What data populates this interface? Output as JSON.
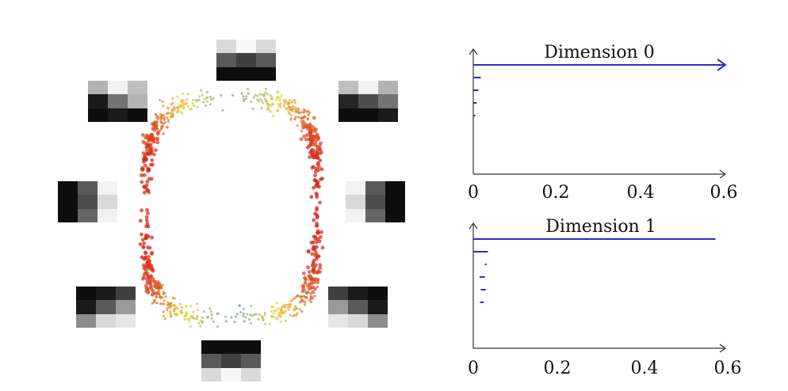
{
  "colors": {
    "bar": "#2b2bcc",
    "axis": "#333333",
    "ring_low": "#2a7bd8",
    "ring_mid": "#e8d840",
    "ring_high": "#d62a1e"
  },
  "patches": [
    {
      "id": "top",
      "pixels": [
        [
          0.85,
          0.97,
          0.85
        ],
        [
          0.35,
          0.25,
          0.35
        ],
        [
          0.05,
          0.05,
          0.05
        ]
      ]
    },
    {
      "id": "upper-right",
      "pixels": [
        [
          0.75,
          0.95,
          0.7
        ],
        [
          0.15,
          0.3,
          0.45
        ],
        [
          0.05,
          0.05,
          0.1
        ]
      ]
    },
    {
      "id": "right",
      "pixels": [
        [
          0.95,
          0.35,
          0.05
        ],
        [
          0.85,
          0.3,
          0.05
        ],
        [
          0.95,
          0.4,
          0.05
        ]
      ]
    },
    {
      "id": "lower-right",
      "pixels": [
        [
          0.25,
          0.1,
          0.05
        ],
        [
          0.6,
          0.35,
          0.1
        ],
        [
          0.9,
          0.85,
          0.55
        ]
      ]
    },
    {
      "id": "bottom",
      "pixels": [
        [
          0.05,
          0.05,
          0.05
        ],
        [
          0.35,
          0.25,
          0.35
        ],
        [
          0.85,
          0.97,
          0.85
        ]
      ]
    },
    {
      "id": "lower-left",
      "pixels": [
        [
          0.05,
          0.1,
          0.25
        ],
        [
          0.1,
          0.35,
          0.6
        ],
        [
          0.55,
          0.85,
          0.9
        ]
      ]
    },
    {
      "id": "left",
      "pixels": [
        [
          0.05,
          0.35,
          0.95
        ],
        [
          0.05,
          0.3,
          0.85
        ],
        [
          0.05,
          0.4,
          0.95
        ]
      ]
    },
    {
      "id": "upper-left",
      "pixels": [
        [
          0.7,
          0.95,
          0.75
        ],
        [
          0.1,
          0.45,
          0.7
        ],
        [
          0.05,
          0.1,
          0.05
        ]
      ]
    }
  ],
  "barcodes": [
    {
      "title": "Dimension 0",
      "xlim": [
        0,
        0.6
      ],
      "ticks": [
        "0",
        "0.2",
        "0.4",
        "0.6"
      ],
      "bars": [
        {
          "birth": 0,
          "death": 0.6,
          "infinite": true
        },
        {
          "birth": 0,
          "death": 0.018
        },
        {
          "birth": 0,
          "death": 0.012
        },
        {
          "birth": 0,
          "death": 0.008
        },
        {
          "birth": 0,
          "death": 0.005
        }
      ]
    },
    {
      "title": "Dimension 1",
      "xlim": [
        0,
        0.6
      ],
      "ticks": [
        "0",
        "0.2",
        "0.4",
        "0.6"
      ],
      "bars": [
        {
          "birth": 0,
          "death": 0.58
        },
        {
          "birth": 0,
          "death": 0.035
        },
        {
          "birth": 0.028,
          "death": 0.032
        },
        {
          "birth": 0.015,
          "death": 0.028
        },
        {
          "birth": 0.018,
          "death": 0.03
        },
        {
          "birth": 0.016,
          "death": 0.025
        }
      ]
    }
  ]
}
